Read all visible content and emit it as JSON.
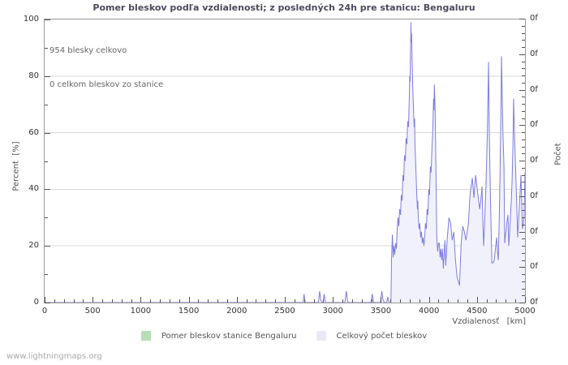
{
  "header": {
    "title": "Pomer bleskov podľa vzdialenosti; z posledných 24h pre stanicu: Bengaluru"
  },
  "annotation": {
    "line1": "954 blesky celkovo",
    "line2": "0 celkom bleskov zo stanice"
  },
  "axes": {
    "x": {
      "title": "Vzdialenosť   [km]",
      "tick_labels": [
        "0",
        "500",
        "1000",
        "1500",
        "2000",
        "2500",
        "3000",
        "3500",
        "4000",
        "4500",
        "5000"
      ]
    },
    "y_left": {
      "title": "Percent  [%]",
      "tick_labels": [
        "0",
        "20",
        "40",
        "60",
        "80",
        "100"
      ]
    },
    "y_right": {
      "title": "Počet",
      "tick_labels": [
        "0f",
        "0f",
        "0f",
        "0f",
        "0f",
        "0f",
        "0f",
        "0f",
        "0f"
      ]
    }
  },
  "legend": {
    "items": [
      {
        "label": "Pomer bleskov stanice Bengaluru",
        "color": "#b5dfb5"
      },
      {
        "label": "Celkový počet bleskov",
        "color": "#e9e9f8"
      }
    ]
  },
  "footer": {
    "site": "www.lightningmaps.org"
  },
  "colors": {
    "line": "#7d7de1",
    "fill": "#f1f1fb",
    "grid": "#d9d9d9",
    "frame": "#999999",
    "tick": "#555555",
    "title": "#4b4b5e",
    "legend_green": "#b5dfb5",
    "legend_lavender": "#e9e9f8"
  },
  "chart_data": {
    "type": "area",
    "title": "Pomer bleskov podľa vzdialenosti; z posledných 24h pre stanicu: Bengaluru",
    "xlabel": "Vzdialenosť [km]",
    "ylabel_left": "Percent [%]",
    "ylabel_right": "Počet",
    "xlim": [
      0,
      5000
    ],
    "ylim_left": [
      0,
      100
    ],
    "x_ticks": [
      0,
      500,
      1000,
      1500,
      2000,
      2500,
      3000,
      3500,
      4000,
      4500,
      5000
    ],
    "x_minor_step": 100,
    "y_ticks_left": [
      0,
      20,
      40,
      60,
      80,
      100
    ],
    "y_minor_step_left": 10,
    "y_right_major_tick_count": 9,
    "y_right_tick_label": "0f",
    "grid": "horizontal",
    "legend_position": "bottom",
    "annotations": [
      "954 blesky celkovo",
      "0 celkom bleskov zo stanice"
    ],
    "series": [
      {
        "name": "Pomer bleskov stanice Bengaluru",
        "color": "#b5dfb5",
        "y_scale": "left_percent",
        "points": [
          [
            0,
            0
          ],
          [
            5000,
            0
          ]
        ]
      },
      {
        "name": "Celkový počet bleskov",
        "color": "#7d7de1",
        "fill": "#f1f1fb",
        "y_scale": "left_percent_equivalent",
        "points": [
          [
            0,
            0
          ],
          [
            2640,
            0
          ],
          [
            2690,
            0
          ],
          [
            2700,
            3
          ],
          [
            2712,
            0
          ],
          [
            2850,
            0
          ],
          [
            2862,
            4
          ],
          [
            2874,
            1
          ],
          [
            2886,
            0
          ],
          [
            2898,
            0
          ],
          [
            2910,
            3
          ],
          [
            2922,
            0
          ],
          [
            3125,
            0
          ],
          [
            3140,
            4
          ],
          [
            3155,
            0
          ],
          [
            3395,
            0
          ],
          [
            3410,
            3
          ],
          [
            3425,
            0
          ],
          [
            3495,
            0
          ],
          [
            3510,
            4
          ],
          [
            3522,
            1
          ],
          [
            3535,
            0
          ],
          [
            3560,
            0
          ],
          [
            3572,
            2
          ],
          [
            3585,
            0
          ],
          [
            3605,
            0
          ],
          [
            3611,
            15
          ],
          [
            3616,
            20
          ],
          [
            3620,
            24
          ],
          [
            3628,
            16
          ],
          [
            3636,
            20
          ],
          [
            3645,
            17
          ],
          [
            3653,
            21
          ],
          [
            3662,
            19
          ],
          [
            3670,
            26
          ],
          [
            3678,
            30
          ],
          [
            3687,
            27
          ],
          [
            3695,
            33
          ],
          [
            3704,
            31
          ],
          [
            3712,
            38
          ],
          [
            3721,
            36
          ],
          [
            3729,
            45
          ],
          [
            3737,
            43
          ],
          [
            3746,
            52
          ],
          [
            3754,
            50
          ],
          [
            3762,
            58
          ],
          [
            3771,
            56
          ],
          [
            3779,
            64
          ],
          [
            3787,
            62
          ],
          [
            3796,
            72
          ],
          [
            3800,
            80
          ],
          [
            3804,
            78
          ],
          [
            3808,
            88
          ],
          [
            3813,
            99
          ],
          [
            3816,
            92
          ],
          [
            3820,
            95
          ],
          [
            3825,
            86
          ],
          [
            3830,
            78
          ],
          [
            3838,
            70
          ],
          [
            3846,
            62
          ],
          [
            3851,
            65
          ],
          [
            3855,
            56
          ],
          [
            3863,
            48
          ],
          [
            3872,
            40
          ],
          [
            3880,
            33
          ],
          [
            3884,
            36
          ],
          [
            3889,
            30
          ],
          [
            3897,
            26
          ],
          [
            3905,
            28
          ],
          [
            3914,
            23
          ],
          [
            3922,
            25
          ],
          [
            3931,
            21
          ],
          [
            3939,
            23
          ],
          [
            3948,
            20
          ],
          [
            3956,
            23
          ],
          [
            3964,
            28
          ],
          [
            3973,
            26
          ],
          [
            3981,
            33
          ],
          [
            3989,
            31
          ],
          [
            3998,
            40
          ],
          [
            4006,
            38
          ],
          [
            4015,
            48
          ],
          [
            4023,
            46
          ],
          [
            4032,
            55
          ],
          [
            4040,
            60
          ],
          [
            4044,
            66
          ],
          [
            4048,
            72
          ],
          [
            4052,
            68
          ],
          [
            4057,
            77
          ],
          [
            4063,
            70
          ],
          [
            4070,
            55
          ],
          [
            4076,
            38
          ],
          [
            4082,
            23
          ],
          [
            4091,
            18
          ],
          [
            4099,
            21
          ],
          [
            4108,
            21
          ],
          [
            4116,
            16
          ],
          [
            4124,
            19
          ],
          [
            4133,
            15
          ],
          [
            4141,
            19
          ],
          [
            4150,
            12
          ],
          [
            4158,
            17
          ],
          [
            4167,
            22
          ],
          [
            4175,
            13
          ],
          [
            4192,
            23
          ],
          [
            4209,
            30
          ],
          [
            4226,
            28
          ],
          [
            4242,
            22
          ],
          [
            4259,
            25
          ],
          [
            4276,
            15
          ],
          [
            4293,
            9
          ],
          [
            4310,
            7
          ],
          [
            4318,
            6
          ],
          [
            4335,
            21
          ],
          [
            4352,
            27
          ],
          [
            4369,
            25
          ],
          [
            4385,
            22
          ],
          [
            4411,
            28
          ],
          [
            4427,
            38
          ],
          [
            4452,
            44
          ],
          [
            4469,
            37
          ],
          [
            4486,
            45
          ],
          [
            4507,
            39
          ],
          [
            4528,
            33
          ],
          [
            4540,
            36
          ],
          [
            4553,
            41
          ],
          [
            4562,
            28
          ],
          [
            4570,
            20
          ],
          [
            4582,
            30
          ],
          [
            4595,
            42
          ],
          [
            4608,
            60
          ],
          [
            4621,
            85
          ],
          [
            4628,
            60
          ],
          [
            4638,
            42
          ],
          [
            4646,
            28
          ],
          [
            4655,
            14
          ],
          [
            4668,
            14
          ],
          [
            4680,
            15
          ],
          [
            4692,
            19
          ],
          [
            4705,
            23
          ],
          [
            4714,
            18
          ],
          [
            4722,
            15
          ],
          [
            4732,
            30
          ],
          [
            4740,
            45
          ],
          [
            4748,
            65
          ],
          [
            4756,
            87
          ],
          [
            4764,
            70
          ],
          [
            4770,
            60
          ],
          [
            4781,
            48
          ],
          [
            4789,
            21
          ],
          [
            4797,
            24
          ],
          [
            4805,
            26
          ],
          [
            4814,
            29
          ],
          [
            4823,
            31
          ],
          [
            4831,
            20
          ],
          [
            4840,
            25
          ],
          [
            4848,
            30
          ],
          [
            4857,
            36
          ],
          [
            4865,
            42
          ],
          [
            4874,
            55
          ],
          [
            4882,
            72
          ],
          [
            4890,
            60
          ],
          [
            4895,
            55
          ],
          [
            4907,
            42
          ],
          [
            4916,
            32
          ],
          [
            4924,
            23
          ],
          [
            4932,
            28
          ],
          [
            4940,
            33
          ],
          [
            4949,
            39
          ],
          [
            4958,
            45
          ],
          [
            4966,
            35
          ],
          [
            4974,
            26
          ],
          [
            4983,
            28
          ],
          [
            4991,
            31
          ],
          [
            5000,
            46
          ]
        ]
      }
    ]
  }
}
